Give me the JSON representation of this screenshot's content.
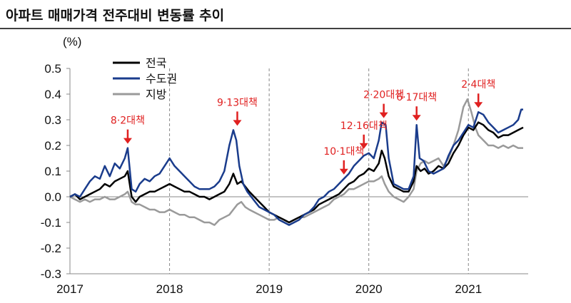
{
  "chart_data": {
    "type": "line",
    "title": "아파트 매매가격 전주대비 변동률 추이",
    "ylabel": "(%)",
    "ylim": [
      -0.3,
      0.5
    ],
    "yticks": [
      "0.5",
      "0.4",
      "0.3",
      "0.2",
      "0.1",
      "0.0",
      "-0.1",
      "-0.2",
      "-0.3"
    ],
    "xlim": [
      2017.0,
      2021.6
    ],
    "xticks": [
      "2017",
      "2018",
      "2019",
      "2020",
      "2021"
    ],
    "year_dividers": [
      2018.0,
      2019.0,
      2020.0,
      2021.0
    ],
    "legend_position": "top-left",
    "colors": {
      "national": "#000000",
      "capital": "#1a3c8c",
      "regional": "#9a9a9a",
      "annotation": "#e02020",
      "axis": "#888888"
    },
    "series": [
      {
        "name": "전국",
        "points": [
          [
            2017.0,
            0.0
          ],
          [
            2017.05,
            0.01
          ],
          [
            2017.1,
            -0.01
          ],
          [
            2017.15,
            0.0
          ],
          [
            2017.2,
            0.01
          ],
          [
            2017.25,
            0.02
          ],
          [
            2017.3,
            0.03
          ],
          [
            2017.35,
            0.05
          ],
          [
            2017.4,
            0.04
          ],
          [
            2017.45,
            0.06
          ],
          [
            2017.5,
            0.07
          ],
          [
            2017.55,
            0.08
          ],
          [
            2017.58,
            0.1
          ],
          [
            2017.62,
            0.0
          ],
          [
            2017.66,
            -0.02
          ],
          [
            2017.7,
            0.0
          ],
          [
            2017.75,
            0.01
          ],
          [
            2017.8,
            0.02
          ],
          [
            2017.85,
            0.02
          ],
          [
            2017.9,
            0.03
          ],
          [
            2017.95,
            0.04
          ],
          [
            2018.0,
            0.05
          ],
          [
            2018.05,
            0.04
          ],
          [
            2018.1,
            0.03
          ],
          [
            2018.15,
            0.02
          ],
          [
            2018.2,
            0.02
          ],
          [
            2018.25,
            0.01
          ],
          [
            2018.3,
            0.0
          ],
          [
            2018.35,
            0.0
          ],
          [
            2018.4,
            -0.01
          ],
          [
            2018.45,
            0.0
          ],
          [
            2018.5,
            0.01
          ],
          [
            2018.55,
            0.02
          ],
          [
            2018.6,
            0.05
          ],
          [
            2018.64,
            0.09
          ],
          [
            2018.68,
            0.05
          ],
          [
            2018.72,
            0.06
          ],
          [
            2018.76,
            0.04
          ],
          [
            2018.8,
            0.02
          ],
          [
            2018.85,
            0.0
          ],
          [
            2018.9,
            -0.02
          ],
          [
            2018.95,
            -0.04
          ],
          [
            2019.0,
            -0.06
          ],
          [
            2019.05,
            -0.07
          ],
          [
            2019.1,
            -0.08
          ],
          [
            2019.15,
            -0.09
          ],
          [
            2019.2,
            -0.1
          ],
          [
            2019.25,
            -0.09
          ],
          [
            2019.3,
            -0.08
          ],
          [
            2019.35,
            -0.07
          ],
          [
            2019.4,
            -0.06
          ],
          [
            2019.45,
            -0.05
          ],
          [
            2019.5,
            -0.03
          ],
          [
            2019.55,
            -0.02
          ],
          [
            2019.6,
            -0.01
          ],
          [
            2019.65,
            0.0
          ],
          [
            2019.7,
            0.01
          ],
          [
            2019.75,
            0.03
          ],
          [
            2019.8,
            0.05
          ],
          [
            2019.85,
            0.06
          ],
          [
            2019.9,
            0.08
          ],
          [
            2019.95,
            0.09
          ],
          [
            2020.0,
            0.11
          ],
          [
            2020.05,
            0.1
          ],
          [
            2020.1,
            0.13
          ],
          [
            2020.13,
            0.18
          ],
          [
            2020.16,
            0.15
          ],
          [
            2020.2,
            0.08
          ],
          [
            2020.25,
            0.04
          ],
          [
            2020.3,
            0.03
          ],
          [
            2020.35,
            0.02
          ],
          [
            2020.4,
            0.02
          ],
          [
            2020.45,
            0.06
          ],
          [
            2020.48,
            0.12
          ],
          [
            2020.52,
            0.1
          ],
          [
            2020.56,
            0.11
          ],
          [
            2020.6,
            0.09
          ],
          [
            2020.65,
            0.1
          ],
          [
            2020.7,
            0.12
          ],
          [
            2020.75,
            0.11
          ],
          [
            2020.8,
            0.13
          ],
          [
            2020.85,
            0.17
          ],
          [
            2020.9,
            0.2
          ],
          [
            2020.95,
            0.24
          ],
          [
            2021.0,
            0.27
          ],
          [
            2021.05,
            0.26
          ],
          [
            2021.1,
            0.29
          ],
          [
            2021.15,
            0.28
          ],
          [
            2021.2,
            0.26
          ],
          [
            2021.25,
            0.25
          ],
          [
            2021.3,
            0.23
          ],
          [
            2021.35,
            0.24
          ],
          [
            2021.4,
            0.24
          ],
          [
            2021.45,
            0.25
          ],
          [
            2021.5,
            0.26
          ],
          [
            2021.55,
            0.27
          ]
        ]
      },
      {
        "name": "수도권",
        "points": [
          [
            2017.0,
            0.0
          ],
          [
            2017.05,
            0.01
          ],
          [
            2017.1,
            0.0
          ],
          [
            2017.15,
            0.03
          ],
          [
            2017.2,
            0.06
          ],
          [
            2017.25,
            0.08
          ],
          [
            2017.3,
            0.07
          ],
          [
            2017.35,
            0.12
          ],
          [
            2017.4,
            0.08
          ],
          [
            2017.45,
            0.13
          ],
          [
            2017.5,
            0.11
          ],
          [
            2017.55,
            0.15
          ],
          [
            2017.58,
            0.19
          ],
          [
            2017.62,
            0.03
          ],
          [
            2017.66,
            0.02
          ],
          [
            2017.7,
            0.05
          ],
          [
            2017.75,
            0.07
          ],
          [
            2017.8,
            0.06
          ],
          [
            2017.85,
            0.08
          ],
          [
            2017.9,
            0.09
          ],
          [
            2017.95,
            0.12
          ],
          [
            2018.0,
            0.15
          ],
          [
            2018.05,
            0.12
          ],
          [
            2018.1,
            0.1
          ],
          [
            2018.15,
            0.08
          ],
          [
            2018.2,
            0.06
          ],
          [
            2018.25,
            0.04
          ],
          [
            2018.3,
            0.03
          ],
          [
            2018.35,
            0.03
          ],
          [
            2018.4,
            0.03
          ],
          [
            2018.45,
            0.04
          ],
          [
            2018.5,
            0.06
          ],
          [
            2018.55,
            0.1
          ],
          [
            2018.6,
            0.2
          ],
          [
            2018.64,
            0.26
          ],
          [
            2018.67,
            0.22
          ],
          [
            2018.7,
            0.12
          ],
          [
            2018.74,
            0.05
          ],
          [
            2018.78,
            0.02
          ],
          [
            2018.82,
            0.0
          ],
          [
            2018.86,
            -0.02
          ],
          [
            2018.9,
            -0.04
          ],
          [
            2018.95,
            -0.05
          ],
          [
            2019.0,
            -0.06
          ],
          [
            2019.05,
            -0.07
          ],
          [
            2019.1,
            -0.09
          ],
          [
            2019.15,
            -0.1
          ],
          [
            2019.2,
            -0.11
          ],
          [
            2019.25,
            -0.1
          ],
          [
            2019.3,
            -0.09
          ],
          [
            2019.35,
            -0.07
          ],
          [
            2019.4,
            -0.06
          ],
          [
            2019.45,
            -0.04
          ],
          [
            2019.5,
            -0.01
          ],
          [
            2019.55,
            0.0
          ],
          [
            2019.6,
            0.02
          ],
          [
            2019.65,
            0.03
          ],
          [
            2019.7,
            0.05
          ],
          [
            2019.75,
            0.07
          ],
          [
            2019.8,
            0.09
          ],
          [
            2019.85,
            0.12
          ],
          [
            2019.9,
            0.14
          ],
          [
            2019.95,
            0.16
          ],
          [
            2020.0,
            0.17
          ],
          [
            2020.05,
            0.15
          ],
          [
            2020.1,
            0.22
          ],
          [
            2020.13,
            0.29
          ],
          [
            2020.17,
            0.28
          ],
          [
            2020.2,
            0.15
          ],
          [
            2020.25,
            0.05
          ],
          [
            2020.3,
            0.04
          ],
          [
            2020.35,
            0.03
          ],
          [
            2020.4,
            0.03
          ],
          [
            2020.45,
            0.08
          ],
          [
            2020.48,
            0.28
          ],
          [
            2020.51,
            0.15
          ],
          [
            2020.55,
            0.14
          ],
          [
            2020.6,
            0.1
          ],
          [
            2020.65,
            0.09
          ],
          [
            2020.7,
            0.1
          ],
          [
            2020.75,
            0.11
          ],
          [
            2020.8,
            0.16
          ],
          [
            2020.85,
            0.2
          ],
          [
            2020.9,
            0.22
          ],
          [
            2020.95,
            0.25
          ],
          [
            2021.0,
            0.28
          ],
          [
            2021.05,
            0.27
          ],
          [
            2021.1,
            0.33
          ],
          [
            2021.15,
            0.32
          ],
          [
            2021.2,
            0.29
          ],
          [
            2021.25,
            0.27
          ],
          [
            2021.3,
            0.25
          ],
          [
            2021.35,
            0.26
          ],
          [
            2021.4,
            0.27
          ],
          [
            2021.45,
            0.28
          ],
          [
            2021.5,
            0.3
          ],
          [
            2021.53,
            0.34
          ],
          [
            2021.55,
            0.34
          ]
        ]
      },
      {
        "name": "지방",
        "points": [
          [
            2017.0,
            0.0
          ],
          [
            2017.05,
            -0.01
          ],
          [
            2017.1,
            -0.02
          ],
          [
            2017.15,
            -0.01
          ],
          [
            2017.2,
            -0.02
          ],
          [
            2017.25,
            -0.01
          ],
          [
            2017.3,
            -0.01
          ],
          [
            2017.35,
            0.0
          ],
          [
            2017.4,
            -0.01
          ],
          [
            2017.45,
            -0.01
          ],
          [
            2017.5,
            0.0
          ],
          [
            2017.55,
            0.01
          ],
          [
            2017.58,
            0.02
          ],
          [
            2017.62,
            -0.02
          ],
          [
            2017.66,
            -0.03
          ],
          [
            2017.7,
            -0.03
          ],
          [
            2017.75,
            -0.04
          ],
          [
            2017.8,
            -0.05
          ],
          [
            2017.85,
            -0.05
          ],
          [
            2017.9,
            -0.06
          ],
          [
            2017.95,
            -0.06
          ],
          [
            2018.0,
            -0.05
          ],
          [
            2018.05,
            -0.06
          ],
          [
            2018.1,
            -0.07
          ],
          [
            2018.15,
            -0.07
          ],
          [
            2018.2,
            -0.08
          ],
          [
            2018.25,
            -0.08
          ],
          [
            2018.3,
            -0.09
          ],
          [
            2018.35,
            -0.1
          ],
          [
            2018.4,
            -0.1
          ],
          [
            2018.45,
            -0.11
          ],
          [
            2018.5,
            -0.09
          ],
          [
            2018.55,
            -0.08
          ],
          [
            2018.6,
            -0.07
          ],
          [
            2018.64,
            -0.05
          ],
          [
            2018.68,
            -0.03
          ],
          [
            2018.72,
            -0.02
          ],
          [
            2018.76,
            -0.04
          ],
          [
            2018.8,
            -0.05
          ],
          [
            2018.85,
            -0.06
          ],
          [
            2018.9,
            -0.07
          ],
          [
            2018.95,
            -0.08
          ],
          [
            2019.0,
            -0.09
          ],
          [
            2019.05,
            -0.09
          ],
          [
            2019.1,
            -0.08
          ],
          [
            2019.15,
            -0.09
          ],
          [
            2019.2,
            -0.1
          ],
          [
            2019.25,
            -0.09
          ],
          [
            2019.3,
            -0.08
          ],
          [
            2019.35,
            -0.08
          ],
          [
            2019.4,
            -0.07
          ],
          [
            2019.45,
            -0.06
          ],
          [
            2019.5,
            -0.05
          ],
          [
            2019.55,
            -0.04
          ],
          [
            2019.6,
            -0.03
          ],
          [
            2019.65,
            -0.01
          ],
          [
            2019.7,
            0.0
          ],
          [
            2019.75,
            0.01
          ],
          [
            2019.8,
            0.03
          ],
          [
            2019.85,
            0.03
          ],
          [
            2019.9,
            0.04
          ],
          [
            2019.95,
            0.05
          ],
          [
            2020.0,
            0.06
          ],
          [
            2020.05,
            0.06
          ],
          [
            2020.1,
            0.07
          ],
          [
            2020.13,
            0.08
          ],
          [
            2020.16,
            0.05
          ],
          [
            2020.2,
            0.02
          ],
          [
            2020.25,
            0.0
          ],
          [
            2020.3,
            -0.01
          ],
          [
            2020.35,
            -0.02
          ],
          [
            2020.4,
            0.0
          ],
          [
            2020.45,
            0.03
          ],
          [
            2020.48,
            0.1
          ],
          [
            2020.52,
            0.13
          ],
          [
            2020.56,
            0.14
          ],
          [
            2020.6,
            0.13
          ],
          [
            2020.65,
            0.14
          ],
          [
            2020.7,
            0.15
          ],
          [
            2020.75,
            0.12
          ],
          [
            2020.8,
            0.15
          ],
          [
            2020.85,
            0.2
          ],
          [
            2020.9,
            0.26
          ],
          [
            2020.95,
            0.35
          ],
          [
            2020.99,
            0.38
          ],
          [
            2021.03,
            0.33
          ],
          [
            2021.07,
            0.27
          ],
          [
            2021.1,
            0.24
          ],
          [
            2021.15,
            0.22
          ],
          [
            2021.2,
            0.2
          ],
          [
            2021.25,
            0.2
          ],
          [
            2021.3,
            0.19
          ],
          [
            2021.35,
            0.2
          ],
          [
            2021.4,
            0.19
          ],
          [
            2021.45,
            0.2
          ],
          [
            2021.5,
            0.19
          ],
          [
            2021.55,
            0.19
          ]
        ]
      }
    ],
    "annotations": [
      {
        "label": "8·2대책",
        "x": 2017.58,
        "y": 0.19
      },
      {
        "label": "9·13대책",
        "x": 2018.68,
        "y": 0.26
      },
      {
        "label": "10·1대책",
        "x": 2019.75,
        "y": 0.07
      },
      {
        "label": "12·16대책",
        "x": 2019.95,
        "y": 0.17
      },
      {
        "label": "2·20대책",
        "x": 2020.15,
        "y": 0.29
      },
      {
        "label": "6·17대책",
        "x": 2020.48,
        "y": 0.28
      },
      {
        "label": "2·4대책",
        "x": 2021.1,
        "y": 0.33
      }
    ]
  }
}
